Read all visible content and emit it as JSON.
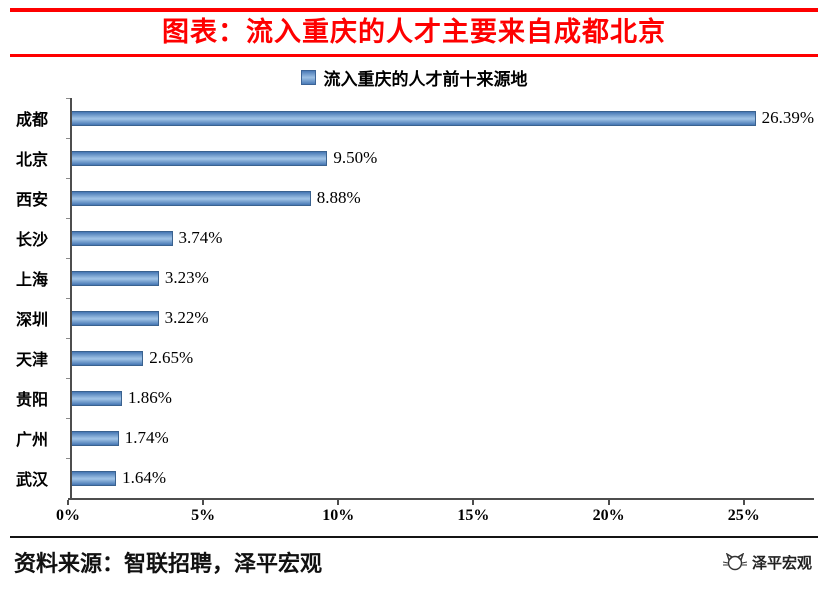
{
  "header": {
    "title": "图表：流入重庆的人才主要来自成都北京",
    "accent_color": "#fe0000"
  },
  "chart_data": {
    "type": "bar",
    "orientation": "horizontal",
    "title": "流入重庆的人才前十来源地",
    "categories": [
      "成都",
      "北京",
      "西安",
      "长沙",
      "上海",
      "深圳",
      "天津",
      "贵阳",
      "广州",
      "武汉"
    ],
    "values": [
      26.39,
      9.5,
      8.88,
      3.74,
      3.23,
      3.22,
      2.65,
      1.86,
      1.74,
      1.64
    ],
    "value_labels": [
      "26.39%",
      "9.50%",
      "8.88%",
      "3.74%",
      "3.23%",
      "3.22%",
      "2.65%",
      "1.86%",
      "1.74%",
      "1.64%"
    ],
    "x_ticks": [
      {
        "value": 0,
        "label": "0%"
      },
      {
        "value": 5,
        "label": "5%"
      },
      {
        "value": 10,
        "label": "10%"
      },
      {
        "value": 15,
        "label": "15%"
      },
      {
        "value": 20,
        "label": "20%"
      },
      {
        "value": 25,
        "label": "25%"
      }
    ],
    "xlim": [
      0,
      27.6
    ],
    "bar_color": "#4f81bd",
    "grid": false,
    "legend_position": "top"
  },
  "footer": {
    "source_text": "资料来源：智联招聘，泽平宏观",
    "brand": "泽平宏观",
    "brand_icon": "cat-logo-icon"
  }
}
